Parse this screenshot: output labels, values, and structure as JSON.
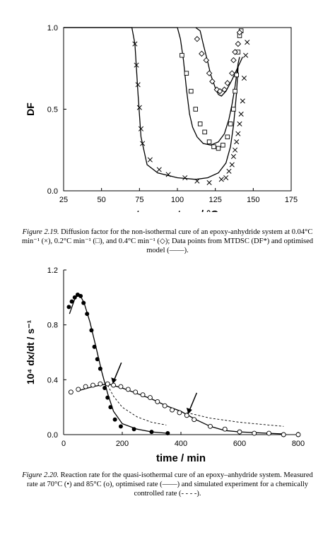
{
  "figures": [
    {
      "caption": {
        "label": "Figure 2.19.",
        "text": " Diffusion factor for the non-isothermal cure of an epoxy-anhydride system at 0.04°C min⁻¹ (×), 0.2°C min⁻¹ (□), and 0.4°C min⁻¹ (◇); Data points from MTDSC (DF*) and optimised model (——)."
      },
      "chart_data": {
        "type": "scatter",
        "xlabel": "temperature / °C",
        "ylabel": "DF",
        "xlim": [
          25,
          175
        ],
        "ylim": [
          0,
          1.0
        ],
        "x_ticks": [
          "25",
          "50",
          "75",
          "100",
          "125",
          "150",
          "175"
        ],
        "y_ticks": [
          "0.0",
          "0.5",
          "1.0"
        ],
        "grid": false,
        "series": [
          {
            "marker": "cross",
            "points": [
              [
                72,
                0.9
              ],
              [
                73,
                0.77
              ],
              [
                74,
                0.65
              ],
              [
                75,
                0.51
              ],
              [
                76,
                0.38
              ],
              [
                77,
                0.29
              ],
              [
                82,
                0.19
              ],
              [
                88,
                0.13
              ],
              [
                94,
                0.1
              ],
              [
                105,
                0.08
              ],
              [
                113,
                0.06
              ],
              [
                121,
                0.05
              ],
              [
                129,
                0.07
              ],
              [
                132,
                0.08
              ],
              [
                134,
                0.12
              ],
              [
                136,
                0.16
              ],
              [
                137,
                0.21
              ],
              [
                138,
                0.25
              ],
              [
                139,
                0.3
              ],
              [
                140,
                0.35
              ],
              [
                141,
                0.41
              ],
              [
                142,
                0.47
              ],
              [
                143,
                0.55
              ],
              [
                144,
                0.69
              ],
              [
                145,
                0.83
              ],
              [
                146,
                0.91
              ]
            ]
          },
          {
            "marker": "square",
            "points": [
              [
                103,
                0.83
              ],
              [
                106,
                0.72
              ],
              [
                109,
                0.61
              ],
              [
                112,
                0.5
              ],
              [
                115,
                0.41
              ],
              [
                118,
                0.36
              ],
              [
                121,
                0.3
              ],
              [
                124,
                0.27
              ],
              [
                127,
                0.26
              ],
              [
                130,
                0.28
              ],
              [
                133,
                0.33
              ],
              [
                135,
                0.41
              ],
              [
                137,
                0.5
              ],
              [
                138,
                0.61
              ],
              [
                139,
                0.71
              ],
              [
                140,
                0.85
              ],
              [
                141,
                0.95
              ],
              [
                142,
                0.98
              ]
            ]
          },
          {
            "marker": "diamond",
            "points": [
              [
                113,
                0.93
              ],
              [
                116,
                0.84
              ],
              [
                119,
                0.8
              ],
              [
                121,
                0.72
              ],
              [
                123,
                0.67
              ],
              [
                126,
                0.62
              ],
              [
                128,
                0.61
              ],
              [
                131,
                0.62
              ],
              [
                133,
                0.66
              ],
              [
                136,
                0.72
              ],
              [
                137,
                0.8
              ],
              [
                138,
                0.85
              ],
              [
                140,
                0.9
              ],
              [
                141,
                0.97
              ]
            ]
          }
        ],
        "model_curves": [
          {
            "points": [
              [
                25,
                1.0
              ],
              [
                70,
                1.0
              ],
              [
                72,
                0.9
              ],
              [
                74,
                0.6
              ],
              [
                76,
                0.33
              ],
              [
                80,
                0.16
              ],
              [
                87,
                0.11
              ],
              [
                100,
                0.08
              ],
              [
                112,
                0.07
              ],
              [
                120,
                0.08
              ],
              [
                127,
                0.11
              ],
              [
                132,
                0.17
              ],
              [
                135,
                0.27
              ],
              [
                137,
                0.4
              ],
              [
                139,
                0.6
              ],
              [
                140,
                0.76
              ]
            ]
          },
          {
            "points": [
              [
                25,
                1.0
              ],
              [
                100,
                1.0
              ],
              [
                102,
                0.93
              ],
              [
                104,
                0.8
              ],
              [
                106,
                0.62
              ],
              [
                108,
                0.47
              ],
              [
                110,
                0.39
              ],
              [
                113,
                0.33
              ],
              [
                117,
                0.29
              ],
              [
                122,
                0.28
              ],
              [
                127,
                0.3
              ],
              [
                131,
                0.35
              ],
              [
                134,
                0.44
              ],
              [
                136,
                0.53
              ],
              [
                138,
                0.64
              ],
              [
                140,
                0.78
              ],
              [
                141,
                0.82
              ]
            ]
          },
          {
            "points": [
              [
                112,
                1.0
              ],
              [
                115,
                0.98
              ],
              [
                117,
                0.9
              ],
              [
                120,
                0.79
              ],
              [
                122,
                0.71
              ],
              [
                125,
                0.63
              ],
              [
                127,
                0.59
              ],
              [
                129,
                0.58
              ],
              [
                132,
                0.61
              ],
              [
                136,
                0.68
              ],
              [
                139,
                0.74
              ],
              [
                141,
                0.78
              ],
              [
                143,
                0.82
              ]
            ]
          }
        ]
      }
    },
    {
      "caption": {
        "label": "Figure 2.20.",
        "text": " Reaction rate for the quasi-isothermal cure of an epoxy–anhydride system. Measured rate at 70°C (•) and 85°C (o), optimised rate (——) and simulated experiment for a chemically controlled rate (- - - -)."
      },
      "chart_data": {
        "type": "scatter",
        "xlabel": "time / min",
        "ylabel": "10⁴ dx/dt / s⁻¹",
        "xlim": [
          0,
          800
        ],
        "ylim": [
          0,
          1.2
        ],
        "x_ticks": [
          "0",
          "200",
          "400",
          "600",
          "800"
        ],
        "y_ticks": [
          "0.0",
          "0.4",
          "0.8",
          "1.2"
        ],
        "grid": false,
        "series": [
          {
            "marker": "filled-circle",
            "points": [
              [
                18,
                0.93
              ],
              [
                28,
                0.97
              ],
              [
                38,
                1.0
              ],
              [
                48,
                1.02
              ],
              [
                58,
                1.01
              ],
              [
                68,
                0.96
              ],
              [
                80,
                0.88
              ],
              [
                95,
                0.76
              ],
              [
                105,
                0.64
              ],
              [
                115,
                0.55
              ],
              [
                125,
                0.48
              ],
              [
                140,
                0.34
              ],
              [
                150,
                0.27
              ],
              [
                160,
                0.2
              ],
              [
                175,
                0.11
              ],
              [
                195,
                0.06
              ],
              [
                240,
                0.04
              ],
              [
                300,
                0.02
              ],
              [
                355,
                0.01
              ]
            ]
          },
          {
            "marker": "open-circle",
            "points": [
              [
                25,
                0.31
              ],
              [
                50,
                0.33
              ],
              [
                75,
                0.35
              ],
              [
                100,
                0.36
              ],
              [
                125,
                0.37
              ],
              [
                150,
                0.37
              ],
              [
                170,
                0.36
              ],
              [
                195,
                0.35
              ],
              [
                220,
                0.33
              ],
              [
                245,
                0.31
              ],
              [
                270,
                0.29
              ],
              [
                295,
                0.27
              ],
              [
                320,
                0.24
              ],
              [
                345,
                0.21
              ],
              [
                370,
                0.18
              ],
              [
                395,
                0.16
              ],
              [
                420,
                0.14
              ],
              [
                445,
                0.11
              ],
              [
                500,
                0.06
              ],
              [
                550,
                0.04
              ],
              [
                600,
                0.02
              ],
              [
                650,
                0.01
              ],
              [
                700,
                0.01
              ],
              [
                750,
                0.0
              ],
              [
                800,
                0.0
              ]
            ]
          }
        ],
        "model_curves": [
          {
            "style": "solid",
            "points": [
              [
                20,
                0.88
              ],
              [
                40,
                1.0
              ],
              [
                55,
                1.02
              ],
              [
                70,
                0.96
              ],
              [
                90,
                0.82
              ],
              [
                110,
                0.64
              ],
              [
                130,
                0.46
              ],
              [
                150,
                0.3
              ],
              [
                170,
                0.17
              ],
              [
                200,
                0.08
              ],
              [
                250,
                0.04
              ],
              [
                300,
                0.02
              ],
              [
                355,
                0.01
              ]
            ]
          },
          {
            "style": "solid",
            "points": [
              [
                50,
                0.32
              ],
              [
                100,
                0.35
              ],
              [
                150,
                0.37
              ],
              [
                200,
                0.34
              ],
              [
                250,
                0.3
              ],
              [
                300,
                0.26
              ],
              [
                350,
                0.21
              ],
              [
                400,
                0.17
              ],
              [
                450,
                0.11
              ],
              [
                500,
                0.06
              ],
              [
                550,
                0.03
              ],
              [
                600,
                0.02
              ],
              [
                700,
                0.01
              ],
              [
                750,
                0.005
              ]
            ]
          },
          {
            "style": "dashed",
            "points": [
              [
                150,
                0.36
              ],
              [
                170,
                0.28
              ],
              [
                200,
                0.2
              ],
              [
                250,
                0.13
              ],
              [
                300,
                0.09
              ],
              [
                350,
                0.07
              ]
            ]
          },
          {
            "style": "dashed",
            "points": [
              [
                420,
                0.16
              ],
              [
                500,
                0.12
              ],
              [
                600,
                0.09
              ],
              [
                700,
                0.07
              ],
              [
                750,
                0.06
              ]
            ]
          }
        ],
        "annotations": [
          {
            "type": "arrow",
            "points_to": [
              168,
              0.37
            ]
          },
          {
            "type": "arrow",
            "points_to": [
              425,
              0.15
            ]
          }
        ]
      }
    }
  ]
}
